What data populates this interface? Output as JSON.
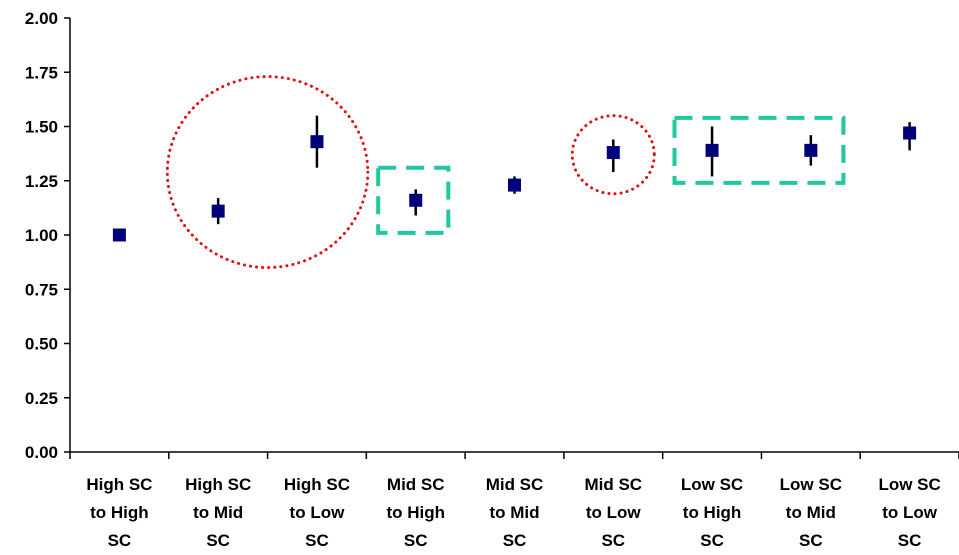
{
  "chart_data": {
    "type": "scatter",
    "title": "",
    "xlabel": "",
    "ylabel": "",
    "ylim": [
      0,
      2
    ],
    "yticks": [
      "0.00",
      "0.25",
      "0.50",
      "0.75",
      "1.00",
      "1.25",
      "1.50",
      "1.75",
      "2.00"
    ],
    "grid": false,
    "legend": "none",
    "categories": [
      [
        "High SC",
        "to High",
        "SC"
      ],
      [
        "High SC",
        "to Mid",
        "SC"
      ],
      [
        "High SC",
        "to Low",
        "SC"
      ],
      [
        "Mid SC",
        "to High",
        "SC"
      ],
      [
        "Mid SC",
        "to Mid",
        "SC"
      ],
      [
        "Mid SC",
        "to Low",
        "SC"
      ],
      [
        "Low SC",
        "to High",
        "SC"
      ],
      [
        "Low SC",
        "to Mid",
        "SC"
      ],
      [
        "Low SC",
        "to Low",
        "SC"
      ]
    ],
    "series": [
      {
        "values": [
          1.0,
          1.11,
          1.43,
          1.16,
          1.23,
          1.38,
          1.39,
          1.39,
          1.47
        ],
        "error_low": [
          1.0,
          1.05,
          1.31,
          1.09,
          1.19,
          1.29,
          1.27,
          1.32,
          1.39
        ],
        "error_high": [
          1.0,
          1.17,
          1.55,
          1.21,
          1.27,
          1.44,
          1.5,
          1.46,
          1.52
        ]
      }
    ],
    "annotations": [
      {
        "shape": "dotted-circle",
        "color": "#e01010",
        "x_index": 1.5,
        "y_center": 1.29,
        "y_radius": 0.44
      },
      {
        "shape": "dashed-rect",
        "color": "#1fc8a0",
        "x_index_range": [
          3,
          3
        ],
        "y_range": [
          1.01,
          1.31
        ]
      },
      {
        "shape": "dotted-circle",
        "color": "#e01010",
        "x_index": 5,
        "y_center": 1.37,
        "y_radius": 0.18
      },
      {
        "shape": "dashed-rect",
        "color": "#1fc8a0",
        "x_index_range": [
          6,
          7
        ],
        "y_range": [
          1.24,
          1.54
        ]
      }
    ],
    "colors": {
      "marker": "#00007a",
      "error_bar": "#000000",
      "axis": "#000000",
      "circle_annotation": "#e01010",
      "rect_annotation": "#1fc8a0"
    }
  }
}
